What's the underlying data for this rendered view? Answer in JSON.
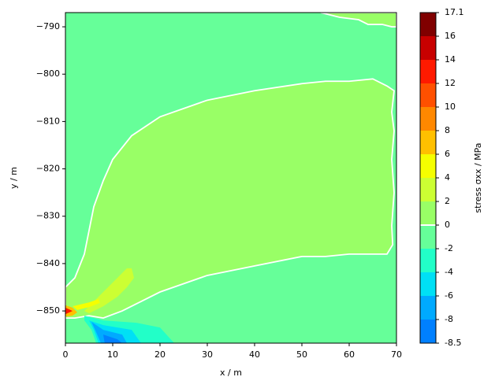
{
  "chart_data": {
    "type": "contour",
    "xlabel": "x / m",
    "ylabel": "y / m",
    "xlim": [
      0,
      70
    ],
    "xticks": [
      0,
      10,
      20,
      30,
      40,
      50,
      60,
      70
    ],
    "ylim": [
      -856.8,
      -787
    ],
    "yticks": [
      {
        "value": -790,
        "label": "−790"
      },
      {
        "value": -800,
        "label": "−800"
      },
      {
        "value": -810,
        "label": "−810"
      },
      {
        "value": -820,
        "label": "−820"
      },
      {
        "value": -830,
        "label": "−830"
      },
      {
        "value": -840,
        "label": "−840"
      },
      {
        "value": -850,
        "label": "−850"
      }
    ],
    "background_range": [
      -2,
      0
    ],
    "contour_line_color": "#ffffff",
    "colorbar": {
      "label": "stress σxx / MPa",
      "levels": [
        -8.5,
        -8,
        -6,
        -4,
        -2,
        0,
        2,
        4,
        6,
        8,
        10,
        12,
        14,
        16,
        17.1
      ],
      "colors": [
        "#0080ff",
        "#00aaff",
        "#00e0f5",
        "#22ffc8",
        "#66ff99",
        "#99ff66",
        "#ccff33",
        "#f5ff00",
        "#ffc000",
        "#ff8800",
        "#ff5000",
        "#ff1a00",
        "#c80000",
        "#800000"
      ]
    },
    "regions": [
      {
        "range": [
          0,
          2
        ],
        "outline": [
          [
            0,
            -845
          ],
          [
            2,
            -843
          ],
          [
            4,
            -838
          ],
          [
            6,
            -828
          ],
          [
            8,
            -822.5
          ],
          [
            10,
            -818
          ],
          [
            14,
            -813
          ],
          [
            20,
            -809
          ],
          [
            30,
            -805.5
          ],
          [
            40,
            -803.5
          ],
          [
            50,
            -802
          ],
          [
            55,
            -801.5
          ],
          [
            60,
            -801.5
          ],
          [
            65,
            -801
          ],
          [
            68,
            -802.5
          ],
          [
            69.5,
            -803.5
          ],
          [
            69,
            -808
          ],
          [
            69.5,
            -812
          ],
          [
            69,
            -818
          ],
          [
            69.5,
            -825
          ],
          [
            69,
            -832
          ],
          [
            69.2,
            -836
          ],
          [
            68,
            -838
          ],
          [
            66,
            -838
          ],
          [
            60,
            -838
          ],
          [
            55,
            -838.5
          ],
          [
            50,
            -838.5
          ],
          [
            40,
            -840.5
          ],
          [
            30,
            -842.5
          ],
          [
            20,
            -846
          ],
          [
            12,
            -850
          ],
          [
            8,
            -851.5
          ],
          [
            5,
            -851
          ],
          [
            2,
            -851.5
          ],
          [
            0,
            -851.5
          ]
        ]
      },
      {
        "range": [
          0,
          2
        ],
        "outline": [
          [
            54,
            -787
          ],
          [
            58,
            -788
          ],
          [
            62,
            -788.5
          ],
          [
            64,
            -789.5
          ],
          [
            67,
            -789.5
          ],
          [
            69,
            -790
          ],
          [
            70,
            -790
          ],
          [
            70,
            -787
          ]
        ]
      },
      {
        "range": [
          2,
          4
        ],
        "outline": [
          [
            4,
            -850
          ],
          [
            6,
            -848
          ],
          [
            8,
            -846
          ],
          [
            11,
            -843
          ],
          [
            13,
            -841
          ],
          [
            14,
            -841
          ],
          [
            14.5,
            -843
          ],
          [
            13,
            -845
          ],
          [
            11,
            -847
          ],
          [
            8,
            -849
          ],
          [
            5,
            -850.5
          ]
        ]
      },
      {
        "range": [
          4,
          6
        ],
        "outline": [
          [
            1.5,
            -849
          ],
          [
            5,
            -848.2
          ],
          [
            7,
            -847.5
          ],
          [
            7.3,
            -848.3
          ],
          [
            5,
            -849.2
          ],
          [
            2.5,
            -849.8
          ]
        ]
      },
      {
        "range": [
          6,
          8
        ],
        "outline": [
          [
            0,
            -848.8
          ],
          [
            1.5,
            -849.3
          ],
          [
            2.5,
            -850.3
          ],
          [
            1.5,
            -851
          ],
          [
            0,
            -851.2
          ]
        ]
      },
      {
        "range": [
          12,
          14
        ],
        "outline": [
          [
            0,
            -849.3
          ],
          [
            1.5,
            -850
          ],
          [
            0,
            -850.7
          ]
        ]
      },
      {
        "range": [
          -4,
          -2
        ],
        "outline": [
          [
            4,
            -851
          ],
          [
            8,
            -852
          ],
          [
            15,
            -852.5
          ],
          [
            20,
            -853.5
          ],
          [
            23,
            -856.8
          ],
          [
            6.5,
            -856.8
          ],
          [
            5.5,
            -854
          ],
          [
            4,
            -852
          ]
        ]
      },
      {
        "range": [
          -6,
          -4
        ],
        "outline": [
          [
            5,
            -852
          ],
          [
            8,
            -853
          ],
          [
            14,
            -854
          ],
          [
            16,
            -856.8
          ],
          [
            7,
            -856.8
          ],
          [
            6,
            -854
          ]
        ]
      },
      {
        "range": [
          -8,
          -6
        ],
        "outline": [
          [
            5.5,
            -852.3
          ],
          [
            8,
            -854
          ],
          [
            12,
            -855
          ],
          [
            13,
            -856.8
          ],
          [
            7.5,
            -856.8
          ],
          [
            6.5,
            -854.5
          ]
        ]
      },
      {
        "range": [
          -8.5,
          -8
        ],
        "outline": [
          [
            8,
            -855
          ],
          [
            11,
            -856
          ],
          [
            12,
            -856.8
          ],
          [
            8.3,
            -856.8
          ]
        ]
      }
    ]
  }
}
